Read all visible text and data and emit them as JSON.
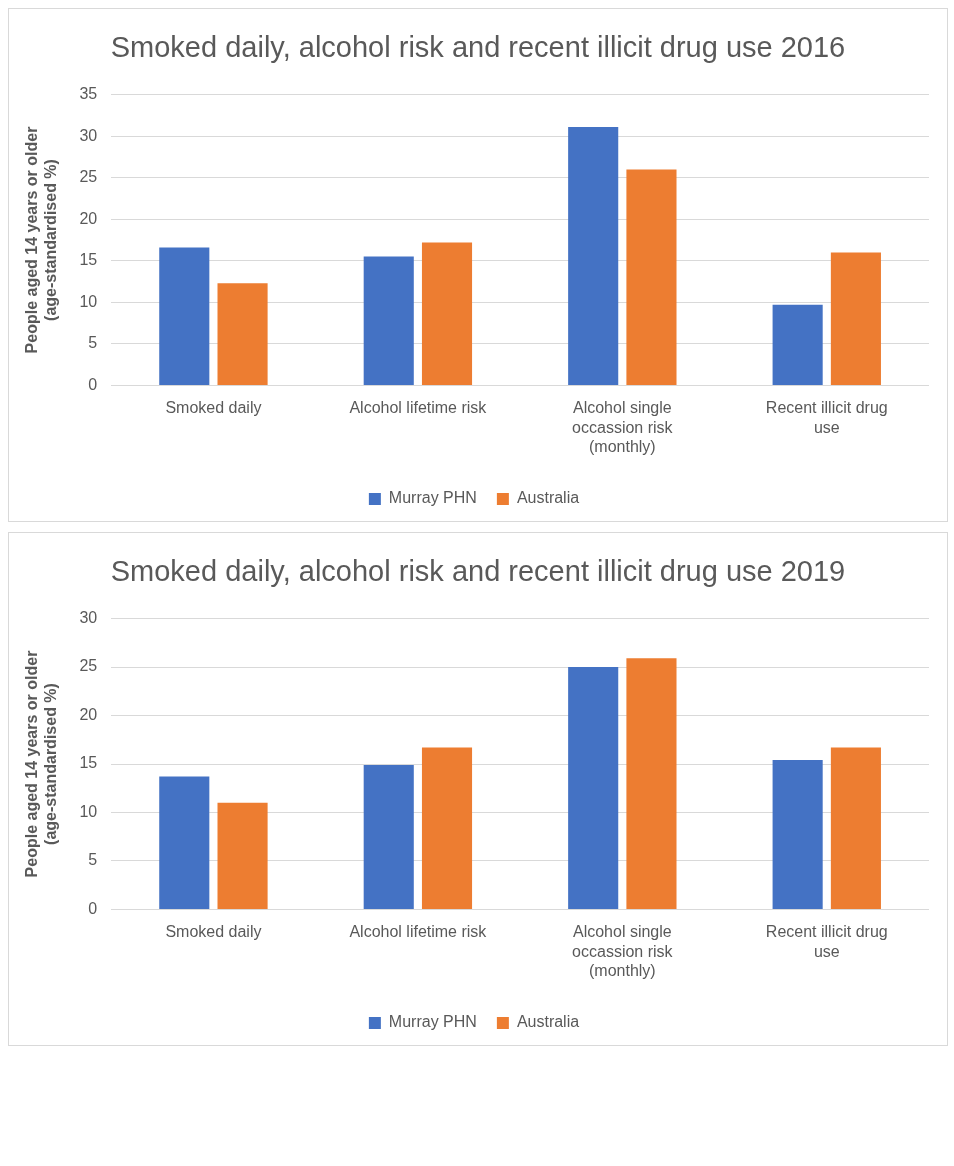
{
  "chart_data": [
    {
      "type": "bar",
      "title": "Smoked daily, alcohol risk and recent illicit drug use 2016",
      "ylabel": "People aged 14 years or older (age-standardised %)",
      "categories": [
        "Smoked daily",
        "Alcohol lifetime risk",
        "Alcohol single occassion risk (monthly)",
        "Recent illicit drug use"
      ],
      "series": [
        {
          "name": "Murray PHN",
          "color": "#4472c4",
          "values": [
            16.6,
            15.5,
            31.1,
            9.7
          ]
        },
        {
          "name": "Australia",
          "color": "#ed7d31",
          "values": [
            12.3,
            17.2,
            26.0,
            16.0
          ]
        }
      ],
      "ylim": [
        0,
        35
      ],
      "yticks": [
        0,
        5,
        10,
        15,
        20,
        25,
        30,
        35
      ],
      "grid": "y",
      "legend": "bottom"
    },
    {
      "type": "bar",
      "title": "Smoked daily, alcohol risk and recent illicit drug use 2019",
      "ylabel": "People aged 14 years or older (age-standardised %)",
      "categories": [
        "Smoked daily",
        "Alcohol lifetime risk",
        "Alcohol single occassion risk (monthly)",
        "Recent illicit drug use"
      ],
      "series": [
        {
          "name": "Murray PHN",
          "color": "#4472c4",
          "values": [
            13.7,
            14.9,
            25.0,
            15.4
          ]
        },
        {
          "name": "Australia",
          "color": "#ed7d31",
          "values": [
            11.0,
            16.7,
            25.9,
            16.7
          ]
        }
      ],
      "ylim": [
        0,
        30
      ],
      "yticks": [
        0,
        5,
        10,
        15,
        20,
        25,
        30
      ],
      "grid": "y",
      "legend": "bottom"
    }
  ]
}
